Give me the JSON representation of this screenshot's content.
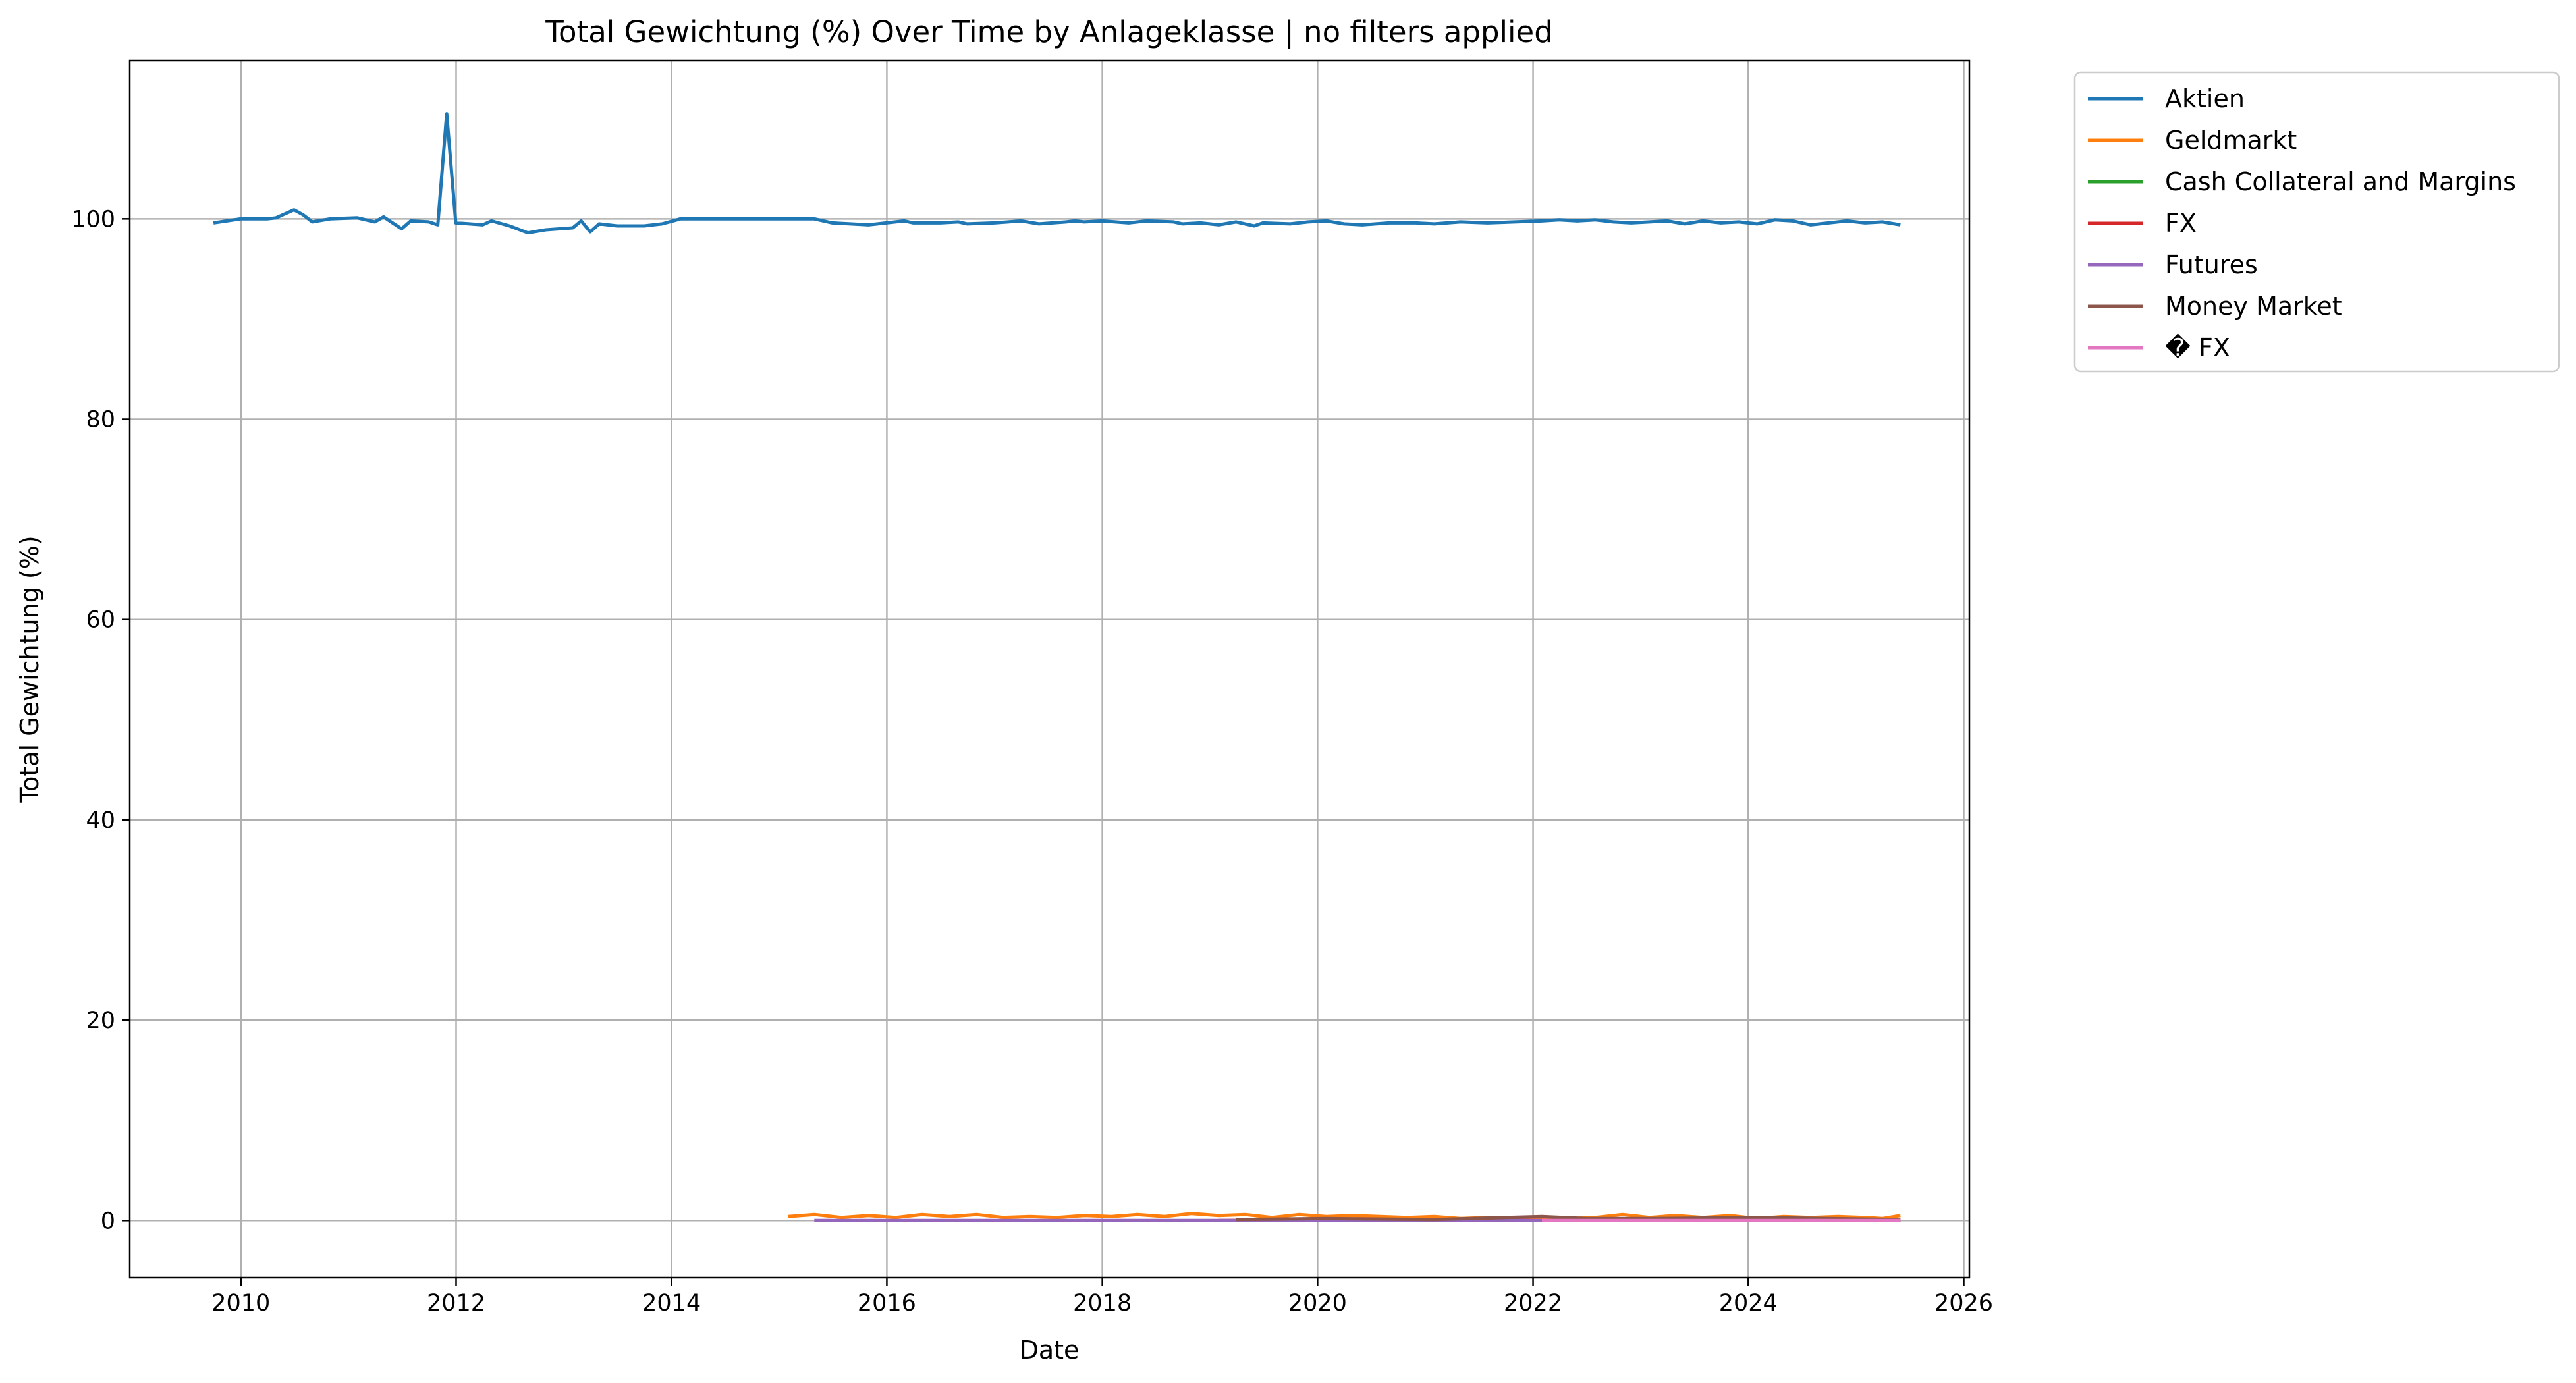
{
  "chart_data": {
    "type": "line",
    "title": "Total Gewichtung (%) Over Time by Anlageklasse | no filters applied",
    "xlabel": "Date",
    "ylabel": "Total Gewichtung (%)",
    "x_type": "date",
    "xlim": [
      "2008-12-20",
      "2026-01-20"
    ],
    "ylim": [
      -5.7,
      115.8
    ],
    "xticks": [
      "2010",
      "2012",
      "2014",
      "2016",
      "2018",
      "2020",
      "2022",
      "2024",
      "2026"
    ],
    "yticks": [
      0,
      20,
      40,
      60,
      80,
      100
    ],
    "grid": true,
    "legend_position": "outside-upper-right",
    "series": [
      {
        "name": "Aktien",
        "color": "#1f77b4",
        "points": [
          [
            "2009-09-30",
            99.6
          ],
          [
            "2009-12-31",
            100.0
          ],
          [
            "2010-03-31",
            100.0
          ],
          [
            "2010-04-30",
            100.1
          ],
          [
            "2010-06-30",
            100.9
          ],
          [
            "2010-07-31",
            100.4
          ],
          [
            "2010-08-31",
            99.7
          ],
          [
            "2010-10-31",
            100.0
          ],
          [
            "2011-01-31",
            100.1
          ],
          [
            "2011-03-31",
            99.7
          ],
          [
            "2011-04-30",
            100.2
          ],
          [
            "2011-06-30",
            99.0
          ],
          [
            "2011-07-31",
            99.8
          ],
          [
            "2011-09-30",
            99.7
          ],
          [
            "2011-10-31",
            99.4
          ],
          [
            "2011-11-30",
            110.5
          ],
          [
            "2011-12-31",
            99.6
          ],
          [
            "2012-03-31",
            99.4
          ],
          [
            "2012-04-30",
            99.8
          ],
          [
            "2012-06-30",
            99.3
          ],
          [
            "2012-08-31",
            98.6
          ],
          [
            "2012-10-31",
            98.9
          ],
          [
            "2013-01-31",
            99.1
          ],
          [
            "2013-02-28",
            99.8
          ],
          [
            "2013-03-31",
            98.7
          ],
          [
            "2013-04-30",
            99.5
          ],
          [
            "2013-06-30",
            99.3
          ],
          [
            "2013-09-30",
            99.3
          ],
          [
            "2013-11-30",
            99.5
          ],
          [
            "2014-01-31",
            100.0
          ],
          [
            "2014-06-30",
            100.0
          ],
          [
            "2015-01-31",
            100.0
          ],
          [
            "2015-04-30",
            100.0
          ],
          [
            "2015-06-30",
            99.6
          ],
          [
            "2015-10-31",
            99.4
          ],
          [
            "2016-02-29",
            99.8
          ],
          [
            "2016-03-31",
            99.6
          ],
          [
            "2016-06-30",
            99.6
          ],
          [
            "2016-08-31",
            99.7
          ],
          [
            "2016-09-30",
            99.5
          ],
          [
            "2016-12-31",
            99.6
          ],
          [
            "2017-03-31",
            99.8
          ],
          [
            "2017-05-31",
            99.5
          ],
          [
            "2017-08-31",
            99.7
          ],
          [
            "2017-09-30",
            99.8
          ],
          [
            "2017-10-31",
            99.7
          ],
          [
            "2017-12-31",
            99.8
          ],
          [
            "2018-03-31",
            99.6
          ],
          [
            "2018-05-31",
            99.8
          ],
          [
            "2018-08-31",
            99.7
          ],
          [
            "2018-09-30",
            99.5
          ],
          [
            "2018-11-30",
            99.6
          ],
          [
            "2019-01-31",
            99.4
          ],
          [
            "2019-03-31",
            99.7
          ],
          [
            "2019-05-31",
            99.3
          ],
          [
            "2019-06-30",
            99.6
          ],
          [
            "2019-09-30",
            99.5
          ],
          [
            "2019-11-30",
            99.7
          ],
          [
            "2020-01-31",
            99.8
          ],
          [
            "2020-03-31",
            99.5
          ],
          [
            "2020-05-31",
            99.4
          ],
          [
            "2020-08-31",
            99.6
          ],
          [
            "2020-11-30",
            99.6
          ],
          [
            "2021-01-31",
            99.5
          ],
          [
            "2021-04-30",
            99.7
          ],
          [
            "2021-07-31",
            99.6
          ],
          [
            "2021-10-31",
            99.7
          ],
          [
            "2022-01-31",
            99.8
          ],
          [
            "2022-03-31",
            99.9
          ],
          [
            "2022-05-31",
            99.8
          ],
          [
            "2022-07-31",
            99.9
          ],
          [
            "2022-09-30",
            99.7
          ],
          [
            "2022-11-30",
            99.6
          ],
          [
            "2023-01-31",
            99.7
          ],
          [
            "2023-03-31",
            99.8
          ],
          [
            "2023-05-31",
            99.5
          ],
          [
            "2023-07-31",
            99.8
          ],
          [
            "2023-09-30",
            99.6
          ],
          [
            "2023-11-30",
            99.7
          ],
          [
            "2024-01-31",
            99.5
          ],
          [
            "2024-03-31",
            99.9
          ],
          [
            "2024-05-31",
            99.8
          ],
          [
            "2024-07-31",
            99.4
          ],
          [
            "2024-09-30",
            99.6
          ],
          [
            "2024-11-30",
            99.8
          ],
          [
            "2025-01-31",
            99.6
          ],
          [
            "2025-03-31",
            99.7
          ],
          [
            "2025-05-31",
            99.4
          ]
        ]
      },
      {
        "name": "Geldmarkt",
        "color": "#ff7f0e",
        "points": [
          [
            "2015-01-31",
            0.4
          ],
          [
            "2015-04-30",
            0.6
          ],
          [
            "2015-07-31",
            0.3
          ],
          [
            "2015-10-31",
            0.5
          ],
          [
            "2016-01-31",
            0.3
          ],
          [
            "2016-04-30",
            0.6
          ],
          [
            "2016-07-31",
            0.4
          ],
          [
            "2016-10-31",
            0.6
          ],
          [
            "2017-01-31",
            0.3
          ],
          [
            "2017-04-30",
            0.4
          ],
          [
            "2017-07-31",
            0.3
          ],
          [
            "2017-10-31",
            0.5
          ],
          [
            "2018-01-31",
            0.4
          ],
          [
            "2018-04-30",
            0.6
          ],
          [
            "2018-07-31",
            0.4
          ],
          [
            "2018-10-31",
            0.7
          ],
          [
            "2019-01-31",
            0.5
          ],
          [
            "2019-04-30",
            0.6
          ],
          [
            "2019-07-31",
            0.3
          ],
          [
            "2019-10-31",
            0.6
          ],
          [
            "2020-01-31",
            0.4
          ],
          [
            "2020-04-30",
            0.5
          ],
          [
            "2020-07-31",
            0.4
          ],
          [
            "2020-10-31",
            0.3
          ],
          [
            "2021-01-31",
            0.4
          ],
          [
            "2021-04-30",
            0.2
          ],
          [
            "2021-07-31",
            0.3
          ],
          [
            "2021-10-31",
            0.2
          ],
          [
            "2022-01-31",
            0.3
          ],
          [
            "2022-04-30",
            0.2
          ],
          [
            "2022-07-31",
            0.3
          ],
          [
            "2022-10-31",
            0.6
          ],
          [
            "2023-01-31",
            0.3
          ],
          [
            "2023-04-30",
            0.5
          ],
          [
            "2023-07-31",
            0.3
          ],
          [
            "2023-10-31",
            0.5
          ],
          [
            "2024-01-31",
            0.2
          ],
          [
            "2024-04-30",
            0.4
          ],
          [
            "2024-07-31",
            0.3
          ],
          [
            "2024-10-31",
            0.4
          ],
          [
            "2025-01-31",
            0.3
          ],
          [
            "2025-03-31",
            0.2
          ],
          [
            "2025-05-31",
            0.5
          ]
        ]
      },
      {
        "name": "Cash Collateral and Margins",
        "color": "#2ca02c",
        "points": [
          [
            "2022-06-30",
            0.05
          ],
          [
            "2023-06-30",
            0.0
          ],
          [
            "2024-06-30",
            0.05
          ],
          [
            "2025-05-31",
            0.0
          ]
        ]
      },
      {
        "name": "FX",
        "color": "#d62728",
        "points": [
          [
            "2019-01-31",
            0.0
          ],
          [
            "2020-06-30",
            0.1
          ],
          [
            "2022-01-31",
            0.0
          ],
          [
            "2023-06-30",
            0.1
          ],
          [
            "2025-05-31",
            0.0
          ]
        ]
      },
      {
        "name": "Futures",
        "color": "#9467bd",
        "points": [
          [
            "2015-04-30",
            0.0
          ],
          [
            "2018-01-31",
            0.0
          ],
          [
            "2021-01-31",
            0.0
          ],
          [
            "2024-01-31",
            0.0
          ],
          [
            "2025-05-31",
            0.0
          ]
        ]
      },
      {
        "name": "Money Market",
        "color": "#8c564b",
        "points": [
          [
            "2019-03-31",
            0.1
          ],
          [
            "2020-01-31",
            0.2
          ],
          [
            "2021-01-31",
            0.1
          ],
          [
            "2022-01-31",
            0.4
          ],
          [
            "2022-06-30",
            0.2
          ],
          [
            "2023-01-31",
            0.2
          ],
          [
            "2024-01-31",
            0.3
          ],
          [
            "2025-05-31",
            0.1
          ]
        ]
      },
      {
        "name": "� FX",
        "color": "#e377c2",
        "points": [
          [
            "2022-01-31",
            0.0
          ],
          [
            "2023-06-30",
            0.0
          ],
          [
            "2025-05-31",
            0.0
          ]
        ]
      }
    ]
  }
}
